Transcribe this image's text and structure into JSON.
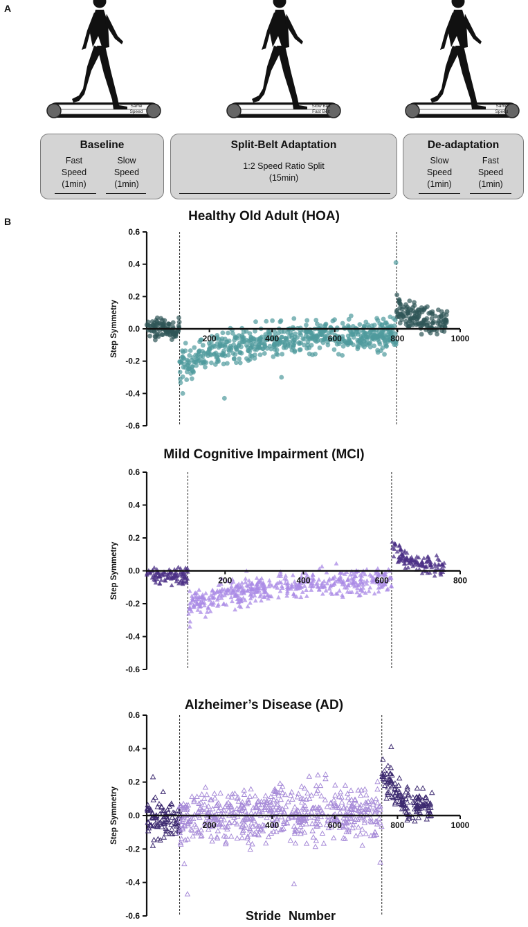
{
  "panel_a": {
    "letter": "A",
    "treadmills": [
      {
        "top": "Same",
        "bottom": "Speed"
      },
      {
        "top": "Slow Belt",
        "bottom": "Fast Belt"
      },
      {
        "top": "Same",
        "bottom": "Speed"
      }
    ],
    "baseline": {
      "title": "Baseline",
      "conditions": [
        {
          "line1": "Fast",
          "line2": "Speed",
          "line3": "(1min)"
        },
        {
          "line1": "Slow",
          "line2": "Speed",
          "line3": "(1min)"
        }
      ]
    },
    "split": {
      "title": "Split-Belt Adaptation",
      "line1": "1:2 Speed Ratio Split",
      "line2": "(15min)"
    },
    "deadapt": {
      "title": "De-adaptation",
      "conditions": [
        {
          "line1": "Slow",
          "line2": "Speed",
          "line3": "(1min)"
        },
        {
          "line1": "Fast",
          "line2": "Speed",
          "line3": "(1min)"
        }
      ]
    },
    "colors": {
      "box": "#d4d4d4",
      "figure": "#111111",
      "belt": "#666666"
    }
  },
  "panel_b": {
    "letter": "B",
    "xlabel_stride": "Stride",
    "xlabel_number": "Number"
  },
  "chart_data": [
    {
      "type": "scatter",
      "title": "Healthy Old Adult (HOA)",
      "ylabel": "Step Symmetry",
      "ylim": [
        -0.6,
        0.6
      ],
      "yticks": [
        "0.6",
        "0.4",
        "0.2",
        "0.0",
        "-0.2",
        "-0.4",
        "-0.6"
      ],
      "xlim": [
        0,
        1000
      ],
      "xticks": [
        "200",
        "400",
        "600",
        "800",
        "1000"
      ],
      "marker": "circle",
      "phase_lines": [
        105,
        797
      ],
      "series": [
        {
          "name": "Baseline",
          "x_range": [
            0,
            105
          ],
          "mean_start": 0.0,
          "mean_end": 0.0,
          "spread": 0.03,
          "color": "#2f5557"
        },
        {
          "name": "Split-Belt Adaptation",
          "x_range": [
            105,
            797
          ],
          "mean_start": -0.23,
          "mean_end": -0.02,
          "spread": 0.05,
          "color": "#4f9a9c"
        },
        {
          "name": "De-adaptation",
          "x_range": [
            797,
            960
          ],
          "mean_start": 0.14,
          "mean_end": 0.04,
          "spread": 0.04,
          "color": "#2f5557"
        }
      ],
      "outliers": [
        [
          795,
          0.41
        ],
        [
          248,
          -0.43
        ],
        [
          115,
          -0.4
        ],
        [
          430,
          -0.3
        ]
      ]
    },
    {
      "type": "scatter",
      "title": "Mild Cognitive Impairment (MCI)",
      "ylabel": "Step Symmetry",
      "ylim": [
        -0.6,
        0.6
      ],
      "yticks": [
        "0.6",
        "0.4",
        "0.2",
        "0.0",
        "-0.2",
        "-0.4",
        "-0.6"
      ],
      "xlim": [
        0,
        800
      ],
      "xticks": [
        "200",
        "400",
        "600",
        "800"
      ],
      "marker": "triangle",
      "phase_lines": [
        105,
        625
      ],
      "series": [
        {
          "name": "Baseline",
          "x_range": [
            0,
            105
          ],
          "mean_start": -0.02,
          "mean_end": -0.03,
          "spread": 0.03,
          "color": "#4b2f86"
        },
        {
          "name": "Split-Belt Adaptation",
          "x_range": [
            105,
            625
          ],
          "mean_start": -0.22,
          "mean_end": -0.05,
          "spread": 0.04,
          "color": "#a98ae6"
        },
        {
          "name": "De-adaptation",
          "x_range": [
            625,
            760
          ],
          "mean_start": 0.15,
          "mean_end": 0.01,
          "spread": 0.03,
          "color": "#4b2f86"
        }
      ],
      "outliers": [
        [
          110,
          -0.34
        ],
        [
          620,
          0.0
        ],
        [
          150,
          -0.28
        ]
      ]
    },
    {
      "type": "scatter",
      "title": "Alzheimer’s Disease (AD)",
      "ylabel": "Step Symmetry",
      "ylim": [
        -0.6,
        0.6
      ],
      "yticks": [
        "0.6",
        "0.4",
        "0.2",
        "0.0",
        "-0.2",
        "-0.4",
        "-0.6"
      ],
      "xlim": [
        0,
        1000
      ],
      "xticks": [
        "200",
        "400",
        "600",
        "800",
        "1000"
      ],
      "marker": "triangle-open",
      "phase_lines": [
        105,
        750
      ],
      "series": [
        {
          "name": "Baseline",
          "x_range": [
            0,
            105
          ],
          "mean_start": -0.02,
          "mean_end": -0.03,
          "spread": 0.06,
          "color": "#3d2a70"
        },
        {
          "name": "Split-Belt Adaptation",
          "x_range": [
            105,
            750
          ],
          "mean_start": -0.02,
          "mean_end": 0.02,
          "spread": 0.08,
          "color": "#a78bd8"
        },
        {
          "name": "De-adaptation",
          "x_range": [
            750,
            915
          ],
          "mean_start": 0.28,
          "mean_end": 0.03,
          "spread": 0.05,
          "color": "#3d2a70"
        }
      ],
      "outliers": [
        [
          130,
          -0.47
        ],
        [
          470,
          -0.41
        ],
        [
          780,
          0.41
        ],
        [
          20,
          0.23
        ],
        [
          120,
          -0.29
        ],
        [
          745,
          -0.28
        ]
      ]
    }
  ]
}
